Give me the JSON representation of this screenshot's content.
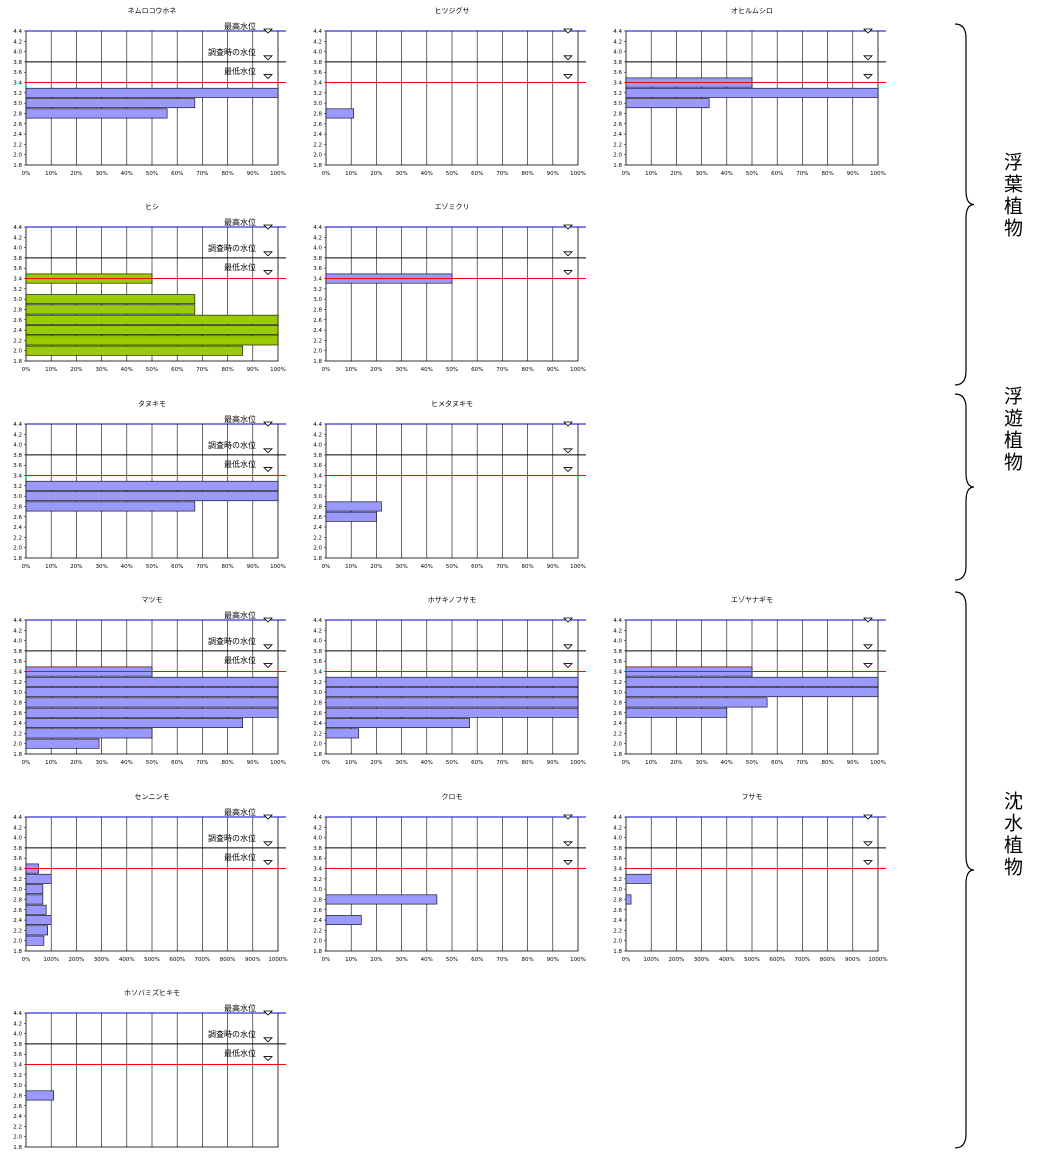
{
  "labels": {
    "max_level": "最高水位",
    "survey_level": "調査時の水位",
    "min_level": "最低水位"
  },
  "groups": [
    {
      "label": "浮葉植物"
    },
    {
      "label": "浮遊植物"
    },
    {
      "label": "沈水植物"
    }
  ],
  "colors": {
    "bar_default": "#9999ff",
    "bar_hishi": "#99cc00",
    "max_line": "#0000cc",
    "survey_line": "#000000",
    "min_line": "#ff0000"
  },
  "y_ticks": [
    "1.8",
    "2.0",
    "2.2",
    "2.4",
    "2.6",
    "2.8",
    "3.0",
    "3.2",
    "3.4",
    "3.6",
    "3.8",
    "4.0",
    "4.2",
    "4.4"
  ],
  "x_ticks_pct": [
    "0%",
    "10%",
    "20%",
    "30%",
    "40%",
    "50%",
    "60%",
    "70%",
    "80%",
    "90%",
    "100%"
  ],
  "x_ticks_1000": [
    "0%",
    "100%",
    "200%",
    "300%",
    "400%",
    "500%",
    "600%",
    "700%",
    "800%",
    "900%",
    "1000%"
  ],
  "chart_data": [
    {
      "type": "bar",
      "orientation": "horizontal",
      "title": "ネムロコウホネ",
      "xlim": [
        0,
        100
      ],
      "ylim": [
        1.8,
        4.4
      ],
      "show_level_labels": true,
      "levels": {
        "max": 4.4,
        "survey": 3.8,
        "min": 3.4
      },
      "bars": [
        {
          "y": 3.2,
          "value": 100
        },
        {
          "y": 3.0,
          "value": 67
        },
        {
          "y": 2.8,
          "value": 56
        }
      ]
    },
    {
      "type": "bar",
      "orientation": "horizontal",
      "title": "ヒツジグサ",
      "xlim": [
        0,
        100
      ],
      "ylim": [
        1.8,
        4.4
      ],
      "show_level_labels": false,
      "levels": {
        "max": 4.4,
        "survey": 3.8,
        "min": 3.4
      },
      "bars": [
        {
          "y": 2.8,
          "value": 11
        }
      ]
    },
    {
      "type": "bar",
      "orientation": "horizontal",
      "title": "オヒルムシロ",
      "xlim": [
        0,
        100
      ],
      "ylim": [
        1.8,
        4.4
      ],
      "show_level_labels": false,
      "levels": {
        "max": 4.4,
        "survey": 3.8,
        "min": 3.4
      },
      "bars": [
        {
          "y": 3.4,
          "value": 50
        },
        {
          "y": 3.2,
          "value": 100
        },
        {
          "y": 3.0,
          "value": 33
        }
      ]
    },
    {
      "type": "bar",
      "orientation": "horizontal",
      "title": "ヒシ",
      "xlim": [
        0,
        100
      ],
      "ylim": [
        1.8,
        4.4
      ],
      "show_level_labels": true,
      "levels": {
        "max": 4.4,
        "survey": 3.8,
        "min": 3.4
      },
      "bar_color": "#99cc00",
      "bars": [
        {
          "y": 3.4,
          "value": 50
        },
        {
          "y": 3.0,
          "value": 67
        },
        {
          "y": 2.8,
          "value": 67
        },
        {
          "y": 2.6,
          "value": 100
        },
        {
          "y": 2.4,
          "value": 100
        },
        {
          "y": 2.2,
          "value": 100
        },
        {
          "y": 2.0,
          "value": 86
        }
      ]
    },
    {
      "type": "bar",
      "orientation": "horizontal",
      "title": "エゾミクリ",
      "xlim": [
        0,
        100
      ],
      "ylim": [
        1.8,
        4.4
      ],
      "show_level_labels": false,
      "levels": {
        "max": 4.4,
        "survey": 3.8,
        "min": 3.4
      },
      "bars": [
        {
          "y": 3.4,
          "value": 50
        }
      ]
    },
    {
      "type": "bar",
      "orientation": "horizontal",
      "title": "タヌキモ",
      "xlim": [
        0,
        100
      ],
      "ylim": [
        1.8,
        4.4
      ],
      "show_level_labels": true,
      "levels": {
        "max": 4.4,
        "survey": 3.8,
        "min": 3.4
      },
      "bars": [
        {
          "y": 3.2,
          "value": 100
        },
        {
          "y": 3.0,
          "value": 100
        },
        {
          "y": 2.8,
          "value": 67
        }
      ]
    },
    {
      "type": "bar",
      "orientation": "horizontal",
      "title": "ヒメタヌキモ",
      "xlim": [
        0,
        100
      ],
      "ylim": [
        1.8,
        4.4
      ],
      "show_level_labels": false,
      "levels": {
        "max": 4.4,
        "survey": 3.8,
        "min": 3.4
      },
      "bars": [
        {
          "y": 2.8,
          "value": 22
        },
        {
          "y": 2.6,
          "value": 20
        }
      ]
    },
    {
      "type": "bar",
      "orientation": "horizontal",
      "title": "マツモ",
      "xlim": [
        0,
        100
      ],
      "ylim": [
        1.8,
        4.4
      ],
      "show_level_labels": true,
      "levels": {
        "max": 4.4,
        "survey": 3.8,
        "min": 3.4
      },
      "bars": [
        {
          "y": 3.4,
          "value": 50
        },
        {
          "y": 3.2,
          "value": 100
        },
        {
          "y": 3.0,
          "value": 100
        },
        {
          "y": 2.8,
          "value": 100
        },
        {
          "y": 2.6,
          "value": 100
        },
        {
          "y": 2.4,
          "value": 86
        },
        {
          "y": 2.2,
          "value": 50
        },
        {
          "y": 2.0,
          "value": 29
        }
      ]
    },
    {
      "type": "bar",
      "orientation": "horizontal",
      "title": "ホザキノフサモ",
      "xlim": [
        0,
        100
      ],
      "ylim": [
        1.8,
        4.4
      ],
      "show_level_labels": false,
      "levels": {
        "max": 4.4,
        "survey": 3.8,
        "min": 3.4
      },
      "bars": [
        {
          "y": 3.2,
          "value": 100
        },
        {
          "y": 3.0,
          "value": 100
        },
        {
          "y": 2.8,
          "value": 100
        },
        {
          "y": 2.6,
          "value": 100
        },
        {
          "y": 2.4,
          "value": 57
        },
        {
          "y": 2.2,
          "value": 13
        }
      ]
    },
    {
      "type": "bar",
      "orientation": "horizontal",
      "title": "エゾヤナギモ",
      "xlim": [
        0,
        100
      ],
      "ylim": [
        1.8,
        4.4
      ],
      "show_level_labels": false,
      "levels": {
        "max": 4.4,
        "survey": 3.8,
        "min": 3.4
      },
      "bars": [
        {
          "y": 3.4,
          "value": 50
        },
        {
          "y": 3.2,
          "value": 100
        },
        {
          "y": 3.0,
          "value": 100
        },
        {
          "y": 2.8,
          "value": 56
        },
        {
          "y": 2.6,
          "value": 40
        }
      ]
    },
    {
      "type": "bar",
      "orientation": "horizontal",
      "title": "センニンモ",
      "xlim": [
        0,
        1000
      ],
      "ylim": [
        1.8,
        4.4
      ],
      "show_level_labels": true,
      "levels": {
        "max": 4.4,
        "survey": 3.8,
        "min": 3.4
      },
      "bars": [
        {
          "y": 3.4,
          "value": 50
        },
        {
          "y": 3.2,
          "value": 100
        },
        {
          "y": 3.0,
          "value": 67
        },
        {
          "y": 2.8,
          "value": 67
        },
        {
          "y": 2.6,
          "value": 80
        },
        {
          "y": 2.4,
          "value": 100
        },
        {
          "y": 2.2,
          "value": 86
        },
        {
          "y": 2.0,
          "value": 71
        }
      ]
    },
    {
      "type": "bar",
      "orientation": "horizontal",
      "title": "クロモ",
      "xlim": [
        0,
        100
      ],
      "ylim": [
        1.8,
        4.4
      ],
      "show_level_labels": false,
      "levels": {
        "max": 4.4,
        "survey": 3.8,
        "min": 3.4
      },
      "bars": [
        {
          "y": 2.8,
          "value": 44
        },
        {
          "y": 2.4,
          "value": 14
        }
      ]
    },
    {
      "type": "bar",
      "orientation": "horizontal",
      "title": "フサモ",
      "xlim": [
        0,
        1000
      ],
      "ylim": [
        1.8,
        4.4
      ],
      "show_level_labels": false,
      "levels": {
        "max": 4.4,
        "survey": 3.8,
        "min": 3.4
      },
      "bars": [
        {
          "y": 3.2,
          "value": 100
        },
        {
          "y": 2.8,
          "value": 20
        }
      ]
    },
    {
      "type": "bar",
      "orientation": "horizontal",
      "title": "ホソバミズヒキモ",
      "xlim": [
        0,
        100
      ],
      "ylim": [
        1.8,
        4.4
      ],
      "show_level_labels": true,
      "levels": {
        "max": 4.4,
        "survey": 3.8,
        "min": 3.4
      },
      "bars": [
        {
          "y": 2.8,
          "value": 11
        }
      ]
    }
  ]
}
